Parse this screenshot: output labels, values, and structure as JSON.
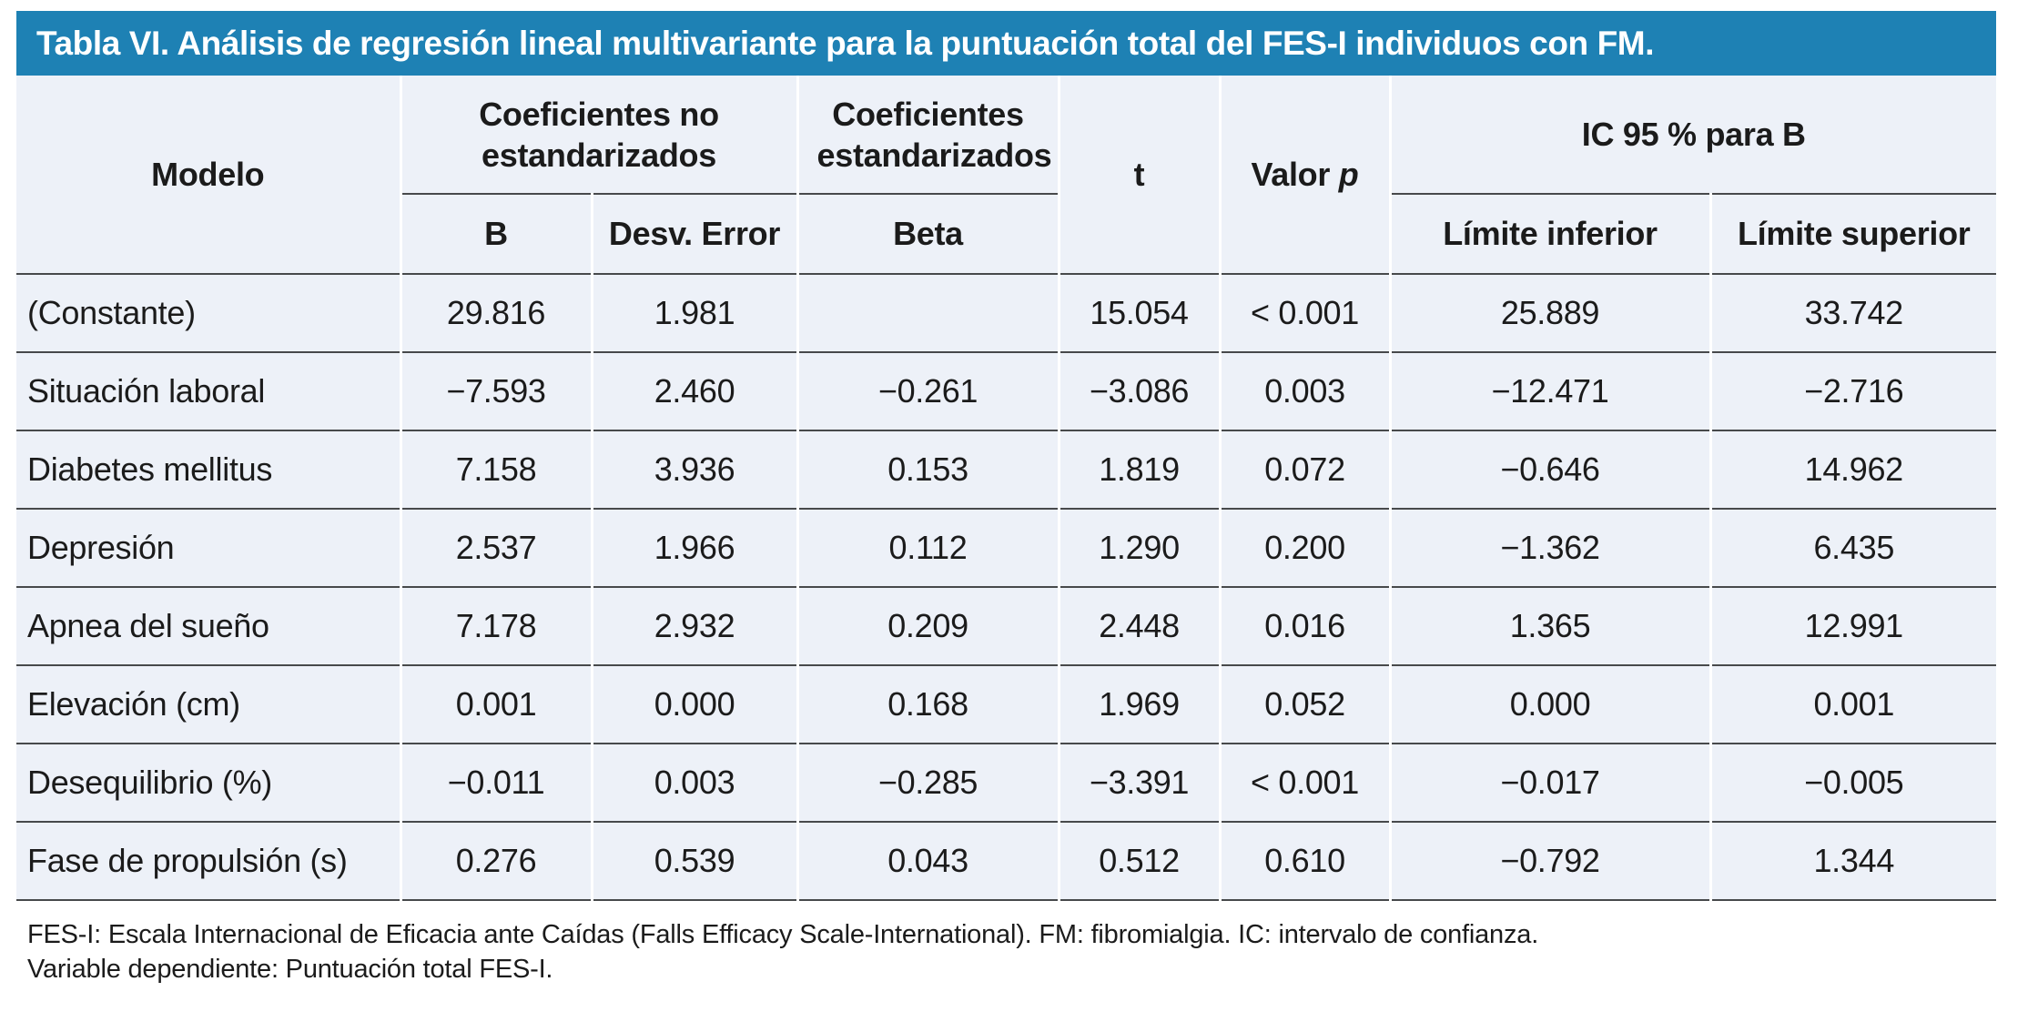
{
  "title": "Tabla VI. Análisis de regresión lineal multivariante para la puntuación total del FES-I individuos con FM.",
  "header": {
    "modelo": "Modelo",
    "coef_no_estandarizados": "Coeficientes no estandarizados",
    "coef_estandarizados": "Coeficientes estandarizados",
    "t": "t",
    "valor": "Valor",
    "p": "p",
    "ic": "IC 95 % para B",
    "b": "B",
    "desv_error": "Desv. Error",
    "beta": "Beta",
    "limite_inferior": "Límite inferior",
    "limite_superior": "Límite superior"
  },
  "rows": [
    {
      "modelo": "(Constante)",
      "b": "29.816",
      "desv": "1.981",
      "beta": "",
      "t": "15.054",
      "p": "< 0.001",
      "li": "25.889",
      "ls": "33.742"
    },
    {
      "modelo": "Situación laboral",
      "b": "−7.593",
      "desv": "2.460",
      "beta": "−0.261",
      "t": "−3.086",
      "p": "0.003",
      "li": "−12.471",
      "ls": "−2.716"
    },
    {
      "modelo": "Diabetes mellitus",
      "b": "7.158",
      "desv": "3.936",
      "beta": "0.153",
      "t": "1.819",
      "p": "0.072",
      "li": "−0.646",
      "ls": "14.962"
    },
    {
      "modelo": "Depresión",
      "b": "2.537",
      "desv": "1.966",
      "beta": "0.112",
      "t": "1.290",
      "p": "0.200",
      "li": "−1.362",
      "ls": "6.435"
    },
    {
      "modelo": "Apnea del sueño",
      "b": "7.178",
      "desv": "2.932",
      "beta": "0.209",
      "t": "2.448",
      "p": "0.016",
      "li": "1.365",
      "ls": "12.991"
    },
    {
      "modelo": "Elevación (cm)",
      "b": "0.001",
      "desv": "0.000",
      "beta": "0.168",
      "t": "1.969",
      "p": "0.052",
      "li": "0.000",
      "ls": "0.001"
    },
    {
      "modelo": "Desequilibrio (%)",
      "b": "−0.011",
      "desv": "0.003",
      "beta": "−0.285",
      "t": "−3.391",
      "p": "< 0.001",
      "li": "−0.017",
      "ls": "−0.005"
    },
    {
      "modelo": "Fase de propulsión (s)",
      "b": "0.276",
      "desv": "0.539",
      "beta": "0.043",
      "t": "0.512",
      "p": "0.610",
      "li": "−0.792",
      "ls": "1.344"
    }
  ],
  "footnotes": {
    "line1": "FES-I: Escala Internacional de Eficacia ante Caídas (Falls Efficacy Scale-International). FM: fibromialgia. IC: intervalo de confianza.",
    "line2": "Variable dependiente: Puntuación total FES-I."
  },
  "colors": {
    "title_bar": "#1e81b4",
    "title_text": "#ffffff",
    "table_background": "#edf1f8",
    "rule_line": "#47494b",
    "text": "#1b1b1b"
  }
}
